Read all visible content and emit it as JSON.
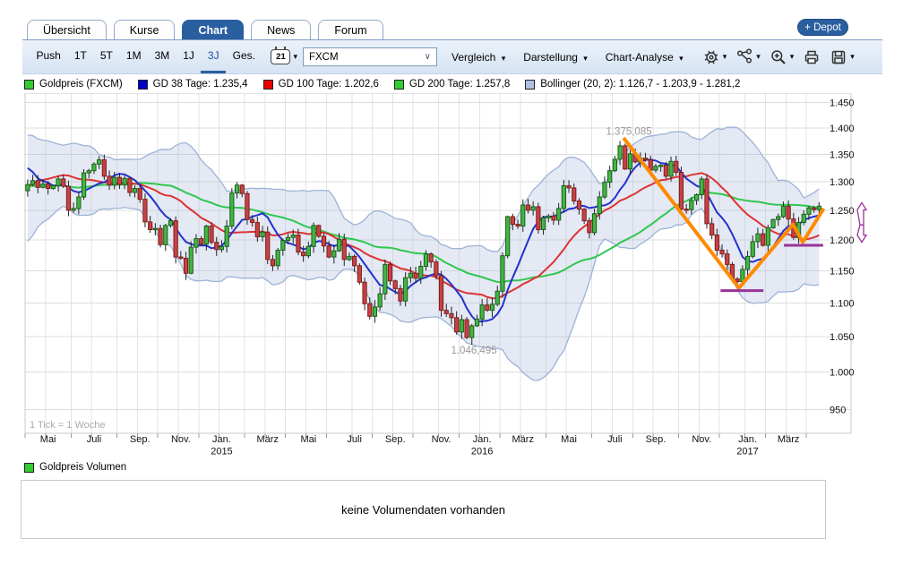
{
  "header": {
    "tabs": [
      {
        "label": "Übersicht",
        "active": false
      },
      {
        "label": "Kurse",
        "active": false
      },
      {
        "label": "Chart",
        "active": true
      },
      {
        "label": "News",
        "active": false
      },
      {
        "label": "Forum",
        "active": false
      }
    ],
    "depot_label": "+ Depot"
  },
  "toolbar": {
    "periods": [
      "Push",
      "1T",
      "5T",
      "1M",
      "3M",
      "1J",
      "3J",
      "Ges."
    ],
    "active_period": "3J",
    "calendar_label": "21",
    "instrument": "FXCM",
    "menus": [
      "Vergleich",
      "Darstellung",
      "Chart-Analyse"
    ],
    "icon_buttons": [
      {
        "name": "settings-icon",
        "dropdown": true
      },
      {
        "name": "share-icon",
        "dropdown": true
      },
      {
        "name": "zoom-in-icon",
        "dropdown": true
      },
      {
        "name": "print-icon",
        "dropdown": false
      },
      {
        "name": "save-icon",
        "dropdown": true
      }
    ]
  },
  "legend": {
    "items": [
      {
        "label": "Goldpreis (FXCM)",
        "color": "#33cc33"
      },
      {
        "label": "GD 38 Tage: 1.235,4",
        "color": "#0000cc"
      },
      {
        "label": "GD 100 Tage: 1.202,6",
        "color": "#ee0000"
      },
      {
        "label": "GD 200 Tage: 1.257,8",
        "color": "#33cc33"
      },
      {
        "label": "Bollinger (20, 2): 1.126,7 - 1.203,9 - 1.281,2",
        "color": "#b0c0e4"
      }
    ]
  },
  "volume": {
    "legend_label": "Goldpreis Volumen",
    "legend_color": "#33cc33",
    "message": "keine Volumendaten vorhanden"
  },
  "chart_data": {
    "type": "candlestick",
    "instrument": "Goldpreis (FXCM)",
    "tick_note": "1 Tick = 1 Woche",
    "y_scale": "log",
    "ylim": [
      950,
      1450
    ],
    "grid": true,
    "y_ticks": [
      {
        "value": 1450,
        "label": "1.450"
      },
      {
        "value": 1400,
        "label": "1.400"
      },
      {
        "value": 1350,
        "label": "1.350"
      },
      {
        "value": 1300,
        "label": "1.300"
      },
      {
        "value": 1250,
        "label": "1.250"
      },
      {
        "value": 1200,
        "label": "1.200"
      },
      {
        "value": 1150,
        "label": "1.150"
      },
      {
        "value": 1100,
        "label": "1.100"
      },
      {
        "value": 1050,
        "label": "1.050"
      },
      {
        "value": 1000,
        "label": "1.000"
      },
      {
        "value": 950,
        "label": "950"
      }
    ],
    "x_ticks": [
      {
        "label": "Mai",
        "week": 4
      },
      {
        "label": "Juli",
        "week": 13
      },
      {
        "label": "Sep.",
        "week": 22
      },
      {
        "label": "Nov.",
        "week": 30
      },
      {
        "label": "Jan.",
        "year": "2015",
        "week": 38
      },
      {
        "label": "März",
        "week": 47
      },
      {
        "label": "Mai",
        "week": 55
      },
      {
        "label": "Juli",
        "week": 64
      },
      {
        "label": "Sep.",
        "week": 72
      },
      {
        "label": "Nov.",
        "week": 81
      },
      {
        "label": "Jan.",
        "year": "2016",
        "week": 89
      },
      {
        "label": "März",
        "week": 97
      },
      {
        "label": "Mai",
        "week": 106
      },
      {
        "label": "Juli",
        "week": 115
      },
      {
        "label": "Sep.",
        "week": 123
      },
      {
        "label": "Nov.",
        "week": 132
      },
      {
        "label": "Jan.",
        "year": "2017",
        "week": 141
      },
      {
        "label": "März",
        "week": 149
      }
    ],
    "month_start_weeks": [
      0,
      4,
      9,
      13,
      18,
      22,
      26,
      30,
      34,
      38,
      43,
      47,
      51,
      55,
      59,
      64,
      68,
      72,
      76,
      81,
      85,
      89,
      93,
      97,
      102,
      106,
      111,
      115,
      119,
      123,
      128,
      132,
      136,
      141,
      145,
      149,
      153
    ],
    "prior_weeks": [
      1224,
      1205,
      1238,
      1252,
      1243,
      1251,
      1259,
      1266,
      1318,
      1329,
      1339,
      1322,
      1359,
      1382,
      1336,
      1311,
      1336,
      1295,
      1284
    ],
    "weekly_close": [
      1295,
      1302,
      1290,
      1296,
      1288,
      1293,
      1305,
      1292,
      1250,
      1253,
      1273,
      1316,
      1320,
      1332,
      1340,
      1310,
      1294,
      1308,
      1295,
      1306,
      1281,
      1288,
      1269,
      1230,
      1217,
      1219,
      1192,
      1224,
      1232,
      1172,
      1170,
      1146,
      1188,
      1202,
      1193,
      1223,
      1196,
      1184,
      1189,
      1223,
      1280,
      1294,
      1279,
      1234,
      1229,
      1205,
      1213,
      1168,
      1158,
      1183,
      1199,
      1204,
      1208,
      1180,
      1174,
      1189,
      1224,
      1206,
      1190,
      1172,
      1182,
      1201,
      1168,
      1173,
      1158,
      1132,
      1099,
      1080,
      1094,
      1114,
      1160,
      1134,
      1122,
      1103,
      1139,
      1146,
      1138,
      1157,
      1177,
      1164,
      1142,
      1089,
      1084,
      1078,
      1057,
      1075,
      1049,
      1066,
      1076,
      1097,
      1089,
      1098,
      1118,
      1174,
      1239,
      1226,
      1223,
      1259,
      1250,
      1256,
      1217,
      1237,
      1240,
      1233,
      1253,
      1293,
      1289,
      1266,
      1252,
      1232,
      1212,
      1244,
      1273,
      1299,
      1320,
      1341,
      1366,
      1323,
      1351,
      1336,
      1343,
      1340,
      1321,
      1328,
      1330,
      1310,
      1337,
      1317,
      1252,
      1251,
      1267,
      1277,
      1305,
      1227,
      1208,
      1183,
      1177,
      1160,
      1137,
      1133,
      1152,
      1173,
      1197,
      1210,
      1191,
      1220,
      1234,
      1239,
      1257,
      1235,
      1204,
      1229,
      1243,
      1254,
      1251,
      1257
    ],
    "special_high": {
      "week": 116,
      "value": 1375.085,
      "label": "1.375,085"
    },
    "special_low": {
      "week": 86,
      "value": 1046.495,
      "label": "1.046,495"
    },
    "indicators": [
      {
        "name": "GD 38 Tage",
        "window_weeks": 8,
        "color": "#2233cc",
        "last_value": "1.235,4"
      },
      {
        "name": "GD 100 Tage",
        "window_weeks": 20,
        "color": "#dd3333",
        "last_value": "1.202,6"
      },
      {
        "name": "GD 200 Tage",
        "window_weeks": 40,
        "color": "#2fc74f",
        "last_value": "1.257,8"
      },
      {
        "name": "Bollinger (20, 2)",
        "window_weeks": 20,
        "stddev": 2,
        "fill_color": "#aabbdd",
        "edge_color": "#9db3d6",
        "last_value": "1.126,7 - 1.203,9 - 1.281,2"
      }
    ],
    "colors": {
      "up": "#44b544",
      "up_edge": "#176117",
      "down": "#c64343",
      "down_edge": "#801d1d",
      "wick": "#222222"
    },
    "drawings": {
      "color": "#993399",
      "trendline": {
        "color": "#ff8a00",
        "width": 4,
        "points": [
          {
            "week": 117.2,
            "price": 1381
          },
          {
            "week": 139.8,
            "price": 1123
          },
          {
            "week": 150.4,
            "price": 1226
          },
          {
            "week": 152.3,
            "price": 1196
          },
          {
            "week": 156.4,
            "price": 1253
          }
        ]
      },
      "support_lines": [
        {
          "price": 1119,
          "week_start": 136.2,
          "week_end": 144.6
        },
        {
          "price": 1191,
          "week_start": 148.6,
          "week_end": 156.3
        }
      ],
      "arrows": [
        {
          "direction": "up",
          "price_from": 1225,
          "price_to": 1263
        },
        {
          "direction": "down",
          "price_from": 1225,
          "price_to": 1196
        }
      ]
    }
  }
}
